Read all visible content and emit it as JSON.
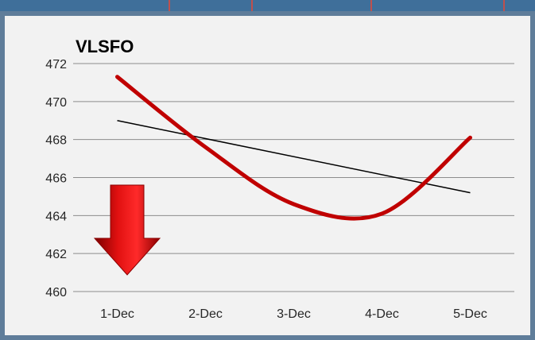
{
  "colors": {
    "frame_border": "#5f7d9a",
    "top_strip": "#3f6f9a",
    "plot_background": "#f2f2f2",
    "gridline": "#8c8c8c",
    "series_line": "#c00000",
    "trendline": "#000000",
    "arrow": "#d40000"
  },
  "annotation": {
    "icon": "red-down-arrow-icon",
    "meaning": "price down"
  },
  "chart_data": {
    "type": "line",
    "title": "VLSFO",
    "xlabel": "",
    "ylabel": "",
    "categories": [
      "1-Dec",
      "2-Dec",
      "3-Dec",
      "4-Dec",
      "5-Dec"
    ],
    "series": [
      {
        "values": [
          471.3,
          467.6,
          464.6,
          464.1,
          468.1
        ],
        "style": "smoothed"
      }
    ],
    "trendline": {
      "type": "linear",
      "start": 469.0,
      "end": 465.2
    },
    "ylim": [
      460,
      472
    ],
    "yticks": [
      "460",
      "462",
      "464",
      "466",
      "468",
      "470",
      "472"
    ],
    "grid": true,
    "legend": "none"
  }
}
